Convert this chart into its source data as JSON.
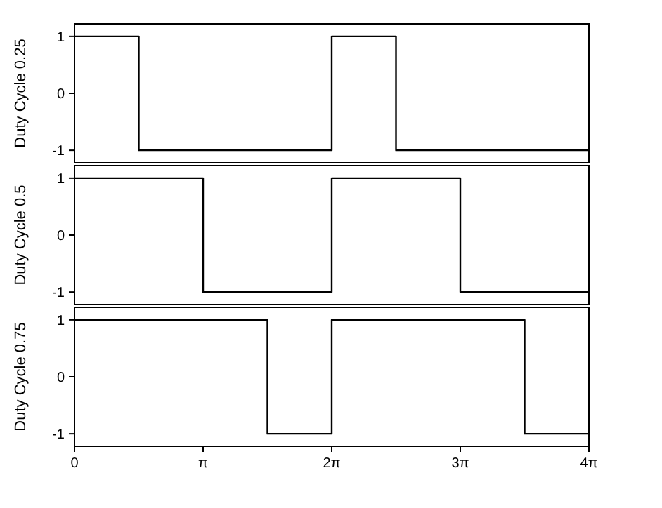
{
  "chart_data": [
    {
      "type": "step",
      "ylabel": "Duty Cycle 0.25",
      "xlim": [
        0,
        12.566
      ],
      "ylim": [
        -1.22,
        1.22
      ],
      "yticks": [
        -1,
        0,
        1
      ],
      "tick_labels": "y",
      "grid": false,
      "series": [
        {
          "color": "#000000",
          "x": [
            0,
            1.5708,
            6.2832,
            7.854,
            12.566
          ],
          "values": [
            1,
            -1,
            1,
            -1,
            -1
          ]
        }
      ]
    },
    {
      "type": "step",
      "ylabel": "Duty Cycle 0.5",
      "xlim": [
        0,
        12.566
      ],
      "ylim": [
        -1.22,
        1.22
      ],
      "yticks": [
        -1,
        0,
        1
      ],
      "tick_labels": "y",
      "grid": false,
      "series": [
        {
          "color": "#000000",
          "x": [
            0,
            3.1416,
            6.2832,
            9.4248,
            12.566
          ],
          "values": [
            1,
            -1,
            1,
            -1,
            -1
          ]
        }
      ]
    },
    {
      "type": "step",
      "ylabel": "Duty Cycle 0.75",
      "xlim": [
        0,
        12.566
      ],
      "ylim": [
        -1.22,
        1.22
      ],
      "yticks": [
        -1,
        0,
        1
      ],
      "xticks": [
        0,
        {
          "value": 3.1416,
          "label": "π"
        },
        {
          "value": 6.2832,
          "label": "2π"
        },
        {
          "value": 9.4248,
          "label": "3π"
        },
        {
          "value": 12.566,
          "label": "4π"
        }
      ],
      "grid": false,
      "series": [
        {
          "color": "#000000",
          "x": [
            0,
            4.7124,
            6.2832,
            10.9956,
            12.566
          ],
          "values": [
            1,
            -1,
            1,
            -1,
            -1
          ]
        }
      ]
    }
  ]
}
